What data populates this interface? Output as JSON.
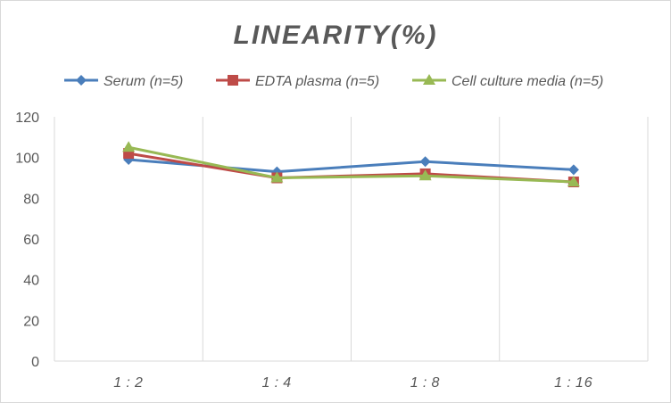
{
  "chart_data": {
    "type": "line",
    "title": "LINEARITY(%)",
    "xlabel": "",
    "ylabel": "",
    "categories": [
      "1:2",
      "1:4",
      "1:8",
      "1:16"
    ],
    "ylim": [
      0,
      120
    ],
    "yticks": [
      0,
      20,
      40,
      60,
      80,
      100,
      120
    ],
    "grid": "vertical",
    "legend_position": "top",
    "series": [
      {
        "name": "Serum (n=5)",
        "values": [
          99,
          93,
          98,
          94
        ],
        "color": "#4a7ebb",
        "marker": "diamond"
      },
      {
        "name": "EDTA plasma (n=5)",
        "values": [
          102,
          90,
          92,
          88
        ],
        "color": "#be4b48",
        "marker": "square"
      },
      {
        "name": "Cell culture media (n=5)",
        "values": [
          105,
          90,
          91,
          88
        ],
        "color": "#98b954",
        "marker": "triangle"
      }
    ]
  }
}
